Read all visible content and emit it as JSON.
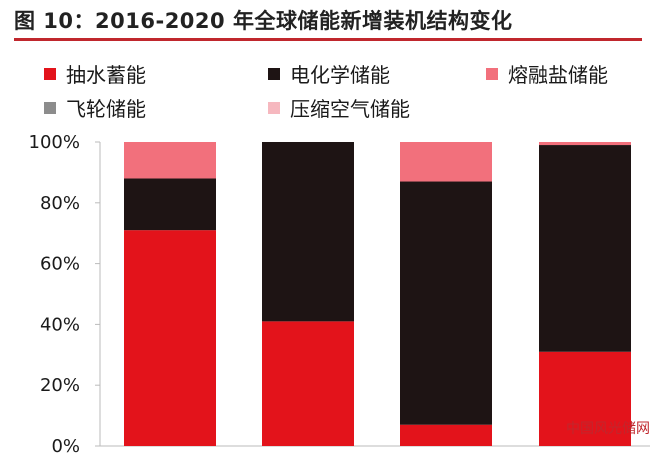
{
  "chart_data": {
    "type": "bar",
    "stacked": true,
    "title": "图 10：2016-2020 年全球储能新增装机结构变化",
    "categories": [
      "",
      "",
      "",
      ""
    ],
    "ylim": [
      0,
      100
    ],
    "yticks": [
      "0%",
      "20%",
      "40%",
      "60%",
      "80%",
      "100%"
    ],
    "legend_position": "top",
    "series": [
      {
        "name": "抽水蓄能",
        "color": "#e3131b",
        "values": [
          71,
          41,
          7,
          31
        ]
      },
      {
        "name": "电化学储能",
        "color": "#1e1414",
        "values": [
          17,
          59,
          80,
          68
        ]
      },
      {
        "name": "熔融盐储能",
        "color": "#f2707c",
        "values": [
          12,
          0,
          13,
          1
        ]
      },
      {
        "name": "飞轮储能",
        "color": "#8c8c8c",
        "values": [
          0,
          0,
          0,
          0
        ]
      },
      {
        "name": "压缩空气储能",
        "color": "#f6b8bf",
        "values": [
          0,
          0,
          0,
          0
        ]
      }
    ]
  },
  "watermark": "中国风光储网"
}
